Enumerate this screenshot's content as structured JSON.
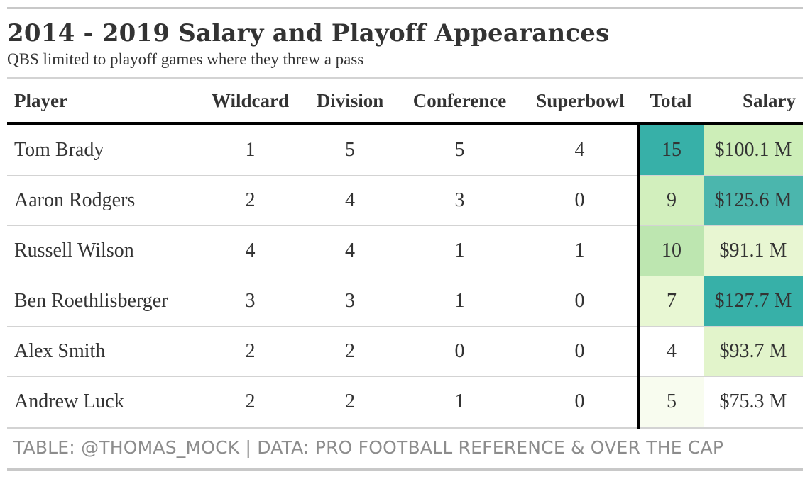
{
  "title": "2014 - 2019 Salary and Playoff Appearances",
  "subtitle": "QBS limited to playoff games where they threw a pass",
  "caption": "TABLE: @THOMAS_MOCK | DATA: PRO FOOTBALL REFERENCE & OVER THE CAP",
  "columns": [
    "Player",
    "Wildcard",
    "Division",
    "Conference",
    "Superbowl",
    "Total",
    "Salary"
  ],
  "rows": [
    {
      "player": "Tom Brady",
      "wildcard": "1",
      "division": "5",
      "conference": "5",
      "superbowl": "4",
      "total": "15",
      "salary": "$100.1 M",
      "total_color": "#37b0a8",
      "salary_color": "#cdeeb8"
    },
    {
      "player": "Aaron Rodgers",
      "wildcard": "2",
      "division": "4",
      "conference": "3",
      "superbowl": "0",
      "total": "9",
      "salary": "$125.6 M",
      "total_color": "#d2efbd",
      "salary_color": "#4bb6ad"
    },
    {
      "player": "Russell Wilson",
      "wildcard": "4",
      "division": "4",
      "conference": "1",
      "superbowl": "1",
      "total": "10",
      "salary": "$91.1 M",
      "total_color": "#bde6b0",
      "salary_color": "#e8f6d2"
    },
    {
      "player": "Ben Roethlisberger",
      "wildcard": "3",
      "division": "3",
      "conference": "1",
      "superbowl": "0",
      "total": "7",
      "salary": "$127.7 M",
      "total_color": "#e8f7d3",
      "salary_color": "#37b0a8"
    },
    {
      "player": "Alex Smith",
      "wildcard": "2",
      "division": "2",
      "conference": "0",
      "superbowl": "0",
      "total": "4",
      "salary": "$93.7 M",
      "total_color": "#ffffff",
      "salary_color": "#e2f4cb"
    },
    {
      "player": "Andrew Luck",
      "wildcard": "2",
      "division": "2",
      "conference": "1",
      "superbowl": "0",
      "total": "5",
      "salary": "$75.3 M",
      "total_color": "#f8fcef",
      "salary_color": "#ffffff"
    }
  ],
  "chart_data": {
    "type": "table",
    "title": "2014 - 2019 Salary and Playoff Appearances",
    "subtitle": "QBS limited to playoff games where they threw a pass",
    "columns": [
      "Player",
      "Wildcard",
      "Division",
      "Conference",
      "Superbowl",
      "Total",
      "Salary"
    ],
    "rows": [
      [
        "Tom Brady",
        1,
        5,
        5,
        4,
        15,
        "$100.1 M"
      ],
      [
        "Aaron Rodgers",
        2,
        4,
        3,
        0,
        9,
        "$125.6 M"
      ],
      [
        "Russell Wilson",
        4,
        4,
        1,
        1,
        10,
        "$91.1 M"
      ],
      [
        "Ben Roethlisberger",
        3,
        3,
        1,
        0,
        7,
        "$127.7 M"
      ],
      [
        "Alex Smith",
        2,
        2,
        0,
        0,
        4,
        "$93.7 M"
      ],
      [
        "Andrew Luck",
        2,
        2,
        1,
        0,
        5,
        "$75.3 M"
      ]
    ],
    "salary_millions": [
      100.1,
      125.6,
      91.1,
      127.7,
      93.7,
      75.3
    ],
    "totals": [
      15,
      9,
      10,
      7,
      4,
      5
    ],
    "color_scale": [
      "#ffffff",
      "#e8f6d2",
      "#cdeeb8",
      "#37b0a8"
    ]
  }
}
